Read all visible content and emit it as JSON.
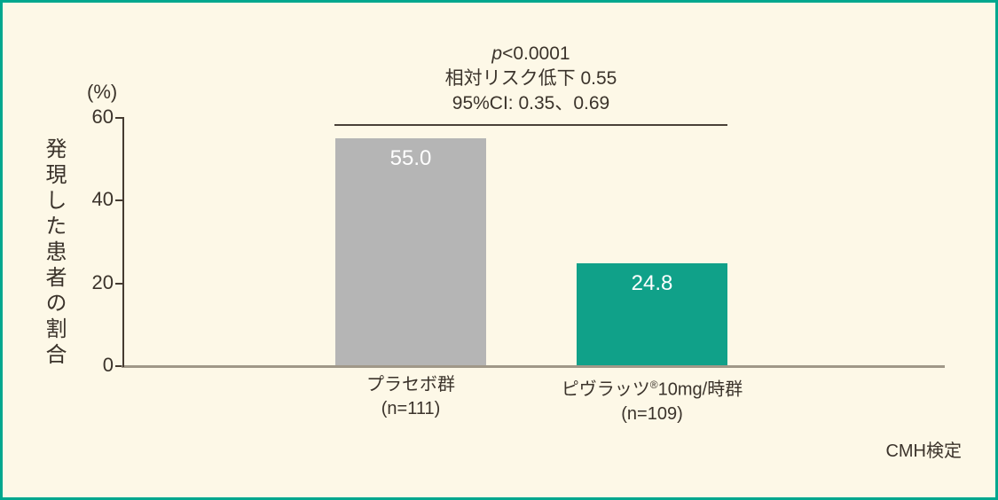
{
  "frame": {
    "border_color": "#00A78E",
    "background_color": "#FDF8E7"
  },
  "chart_data": {
    "type": "bar",
    "categories": [
      "プラセボ群",
      "ピヴラッツ®10mg/時群"
    ],
    "category_sublabels": [
      "(n=111)",
      "(n=109)"
    ],
    "values": [
      55.0,
      24.8
    ],
    "value_labels": [
      "55.0",
      "24.8"
    ],
    "bar_colors": [
      "#B5B5B5",
      "#10A189"
    ],
    "ylabel": "発現した患者の割合",
    "y_unit": "(%)",
    "xlabel": "",
    "ylim": [
      0,
      60
    ],
    "yticks": [
      0,
      20,
      40,
      60
    ],
    "grid": false,
    "legend": null,
    "annotations": {
      "p_italic": "p",
      "p_rest": "<0.0001",
      "relative_risk": "相対リスク低下 0.55",
      "confidence_interval": "95%CI: 0.35、0.69"
    },
    "footnote": "CMH検定"
  }
}
